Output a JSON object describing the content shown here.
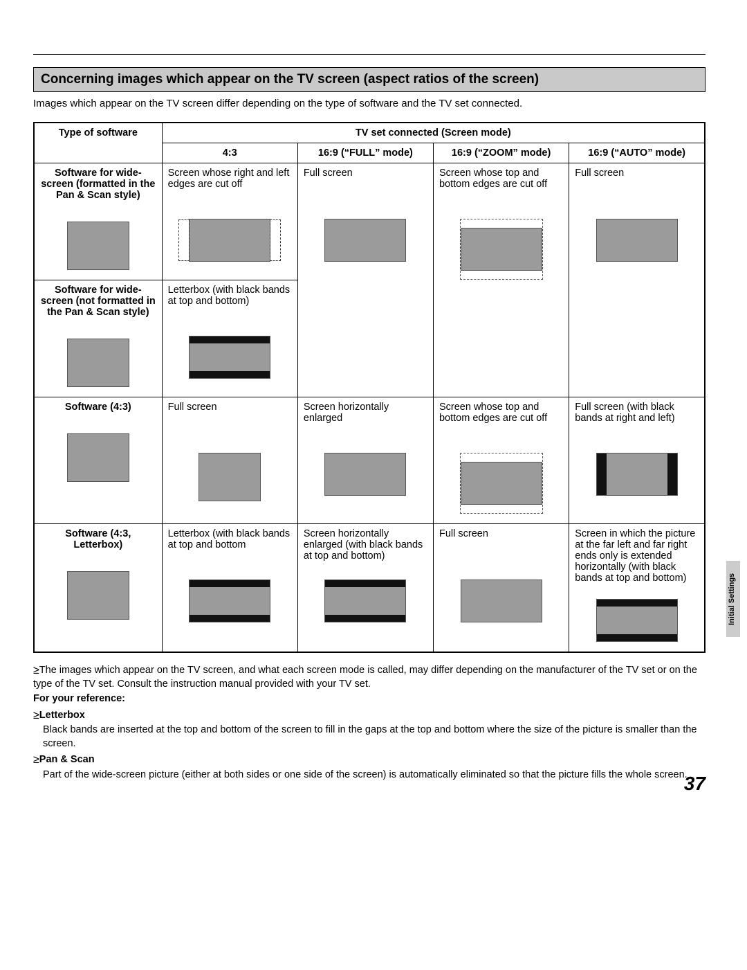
{
  "page_number": "37",
  "side_tab": "Initial Settings",
  "section_title": "Concerning images which appear on the TV screen (aspect ratios of the screen)",
  "intro": "Images which appear on the TV screen differ depending on the type of software and the TV set connected.",
  "headers": {
    "software": "Type of software",
    "group": "TV set connected (Screen mode)",
    "c1": "4:3",
    "c2": "16:9 (“FULL” mode)",
    "c3": "16:9 (“ZOOM” mode)",
    "c4": "16:9 (“AUTO” mode)"
  },
  "rows": {
    "r1": {
      "label": "Software for wide-screen (formatted in the Pan & Scan style)",
      "c1": "Screen whose right and left edges are cut off",
      "c2": "Full screen",
      "c3": "Screen whose top and bottom edges are cut off",
      "c4": "Full screen"
    },
    "r2": {
      "label": "Software for wide-screen (not formatted in the Pan & Scan style)",
      "c1": "Letterbox (with black bands at top and bottom)"
    },
    "r3": {
      "label": "Software (4:3)",
      "c1": "Full screen",
      "c2": "Screen horizontally enlarged",
      "c3": "Screen whose top and bottom edges are cut off",
      "c4": "Full screen\n(with black bands at right and left)"
    },
    "r4": {
      "label": "Software\n(4:3, Letterbox)",
      "c1": "Letterbox (with black bands at top and bottom",
      "c2": "Screen horizontally enlarged (with black bands at top and bottom)",
      "c3": "Full screen",
      "c4": "Screen in which the picture at the far left and far right ends only is extended horizontally (with black bands at top and bottom)"
    }
  },
  "notes": {
    "n1": "The images which appear on the TV screen, and what each screen mode is called, may differ depending on the manufacturer of the TV set or on the type of the TV set. Consult the instruction manual provided with your TV set.",
    "ref_head": "For your reference:",
    "lb_head": "Letterbox",
    "lb_body": "Black bands are inserted at the top and bottom of the screen to fill in the gaps at the top and bottom where the size of the picture is smaller than the screen.",
    "ps_head": "Pan & Scan",
    "ps_body": "Part of the wide-screen picture (either at both sides or one side of the screen) is automatically eliminated so that the picture fills the whole screen."
  }
}
